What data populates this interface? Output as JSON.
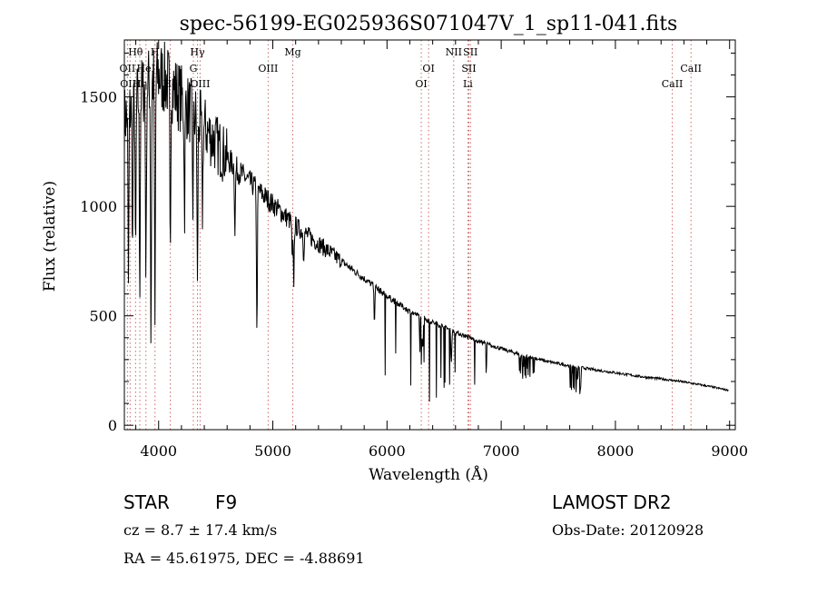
{
  "chart_data": {
    "type": "line",
    "title": "spec-56199-EG025936S071047V_1_sp11-041.fits",
    "xlabel": "Wavelength (Å)",
    "ylabel": "Flux (relative)",
    "xlim": [
      3700,
      9050
    ],
    "ylim": [
      -20,
      1760
    ],
    "xticks": [
      4000,
      5000,
      6000,
      7000,
      8000,
      9000
    ],
    "yticks": [
      0,
      500,
      1000,
      1500
    ],
    "continuum": {
      "x": [
        3700,
        3800,
        3900,
        4000,
        4100,
        4200,
        4300,
        4400,
        4500,
        4600,
        4700,
        4800,
        4900,
        5000,
        5100,
        5200,
        5300,
        5400,
        5500,
        5600,
        5700,
        5800,
        5900,
        6000,
        6100,
        6200,
        6300,
        6400,
        6500,
        6600,
        6700,
        6800,
        7000,
        7200,
        7400,
        7600,
        7800,
        8000,
        8200,
        8400,
        8600,
        8800,
        8990
      ],
      "y": [
        1400,
        1480,
        1560,
        1600,
        1560,
        1490,
        1420,
        1360,
        1290,
        1220,
        1160,
        1110,
        1060,
        1010,
        960,
        910,
        870,
        830,
        790,
        750,
        710,
        670,
        630,
        590,
        555,
        520,
        495,
        470,
        450,
        425,
        405,
        385,
        350,
        318,
        292,
        272,
        255,
        240,
        224,
        212,
        198,
        180,
        160
      ]
    },
    "absorption_lines": [
      {
        "x": 3736,
        "depth": 0.55
      },
      {
        "x": 3771,
        "depth": 0.45
      },
      {
        "x": 3798,
        "depth": 0.5
      },
      {
        "x": 3835,
        "depth": 0.6
      },
      {
        "x": 3889,
        "depth": 0.55
      },
      {
        "x": 3933,
        "depth": 0.78
      },
      {
        "x": 3968,
        "depth": 0.72
      },
      {
        "x": 4102,
        "depth": 0.5
      },
      {
        "x": 4227,
        "depth": 0.35
      },
      {
        "x": 4300,
        "depth": 0.3
      },
      {
        "x": 4340,
        "depth": 0.55
      },
      {
        "x": 4384,
        "depth": 0.3
      },
      {
        "x": 4668,
        "depth": 0.25
      },
      {
        "x": 4861,
        "depth": 0.62
      },
      {
        "x": 5170,
        "depth": 0.2
      },
      {
        "x": 5183,
        "depth": 0.3
      },
      {
        "x": 5270,
        "depth": 0.12
      },
      {
        "x": 5890,
        "depth": 0.25
      },
      {
        "x": 6563,
        "depth": 0.35
      }
    ],
    "spectral_lines": [
      {
        "label": "Hθ",
        "x": 3798,
        "row": 1
      },
      {
        "label": "OII",
        "x": 3727,
        "row": 2
      },
      {
        "label": "OIII",
        "x": 3750,
        "row": 3
      },
      {
        "label": "HeI",
        "x": 3889,
        "row": 2
      },
      {
        "label": "Hη",
        "x": 3835,
        "row": 3
      },
      {
        "label": "H",
        "x": 3968,
        "row": 1
      },
      {
        "label": "Hδ",
        "x": 4102,
        "row": 3
      },
      {
        "label": "Hγ",
        "x": 4340,
        "row": 1
      },
      {
        "label": "G",
        "x": 4304,
        "row": 2
      },
      {
        "label": "OIII",
        "x": 4363,
        "row": 3
      },
      {
        "label": "OIII",
        "x": 4959,
        "row": 2
      },
      {
        "label": "Mg",
        "x": 5175,
        "row": 1
      },
      {
        "label": "OI",
        "x": 6364,
        "row": 2
      },
      {
        "label": "OI",
        "x": 6300,
        "row": 3
      },
      {
        "label": "NII",
        "x": 6584,
        "row": 1
      },
      {
        "label": "SII",
        "x": 6731,
        "row": 1
      },
      {
        "label": "SII",
        "x": 6717,
        "row": 2
      },
      {
        "label": "Li",
        "x": 6708,
        "row": 3
      },
      {
        "label": "CaII",
        "x": 8662,
        "row": 2
      },
      {
        "label": "CaII",
        "x": 8498,
        "row": 3
      }
    ]
  },
  "info": {
    "object": "STAR",
    "subclass": "F9",
    "survey": "LAMOST DR2",
    "cz": "cz = 8.7 ± 17.4 km/s",
    "obs_date": "Obs-Date: 20120928",
    "coords": "RA =  45.61975, DEC =  -4.88691"
  }
}
